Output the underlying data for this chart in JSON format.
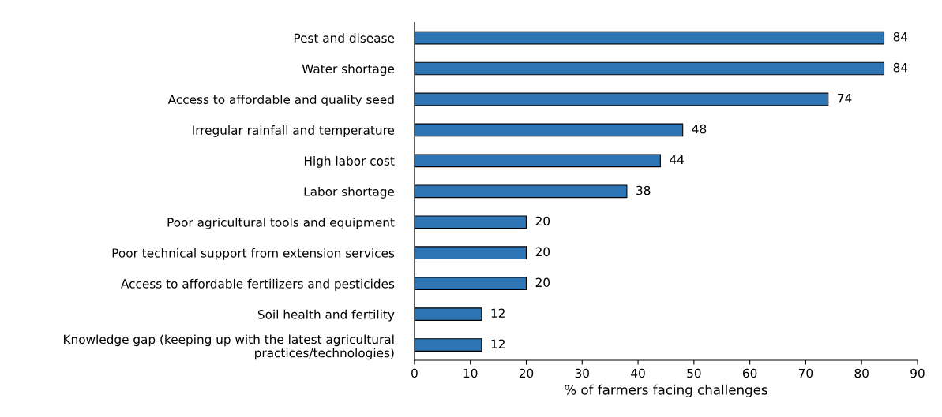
{
  "chart_data": {
    "type": "bar",
    "orientation": "horizontal",
    "xlabel": "% of farmers facing challenges",
    "categories": [
      "Pest and disease",
      "Water shortage",
      "Access to affordable and quality seed",
      "Irregular rainfall and temperature",
      "High labor cost",
      "Labor shortage",
      "Poor agricultural tools and equipment",
      "Poor technical support from extension services",
      "Access to affordable fertilizers and pesticides",
      "Soil health and fertility",
      "Knowledge gap (keeping up with the latest agricultural\npractices/technologies)"
    ],
    "values": [
      84,
      84,
      74,
      48,
      44,
      38,
      20,
      20,
      20,
      12,
      12
    ],
    "color": "#2e75b6",
    "xlim": [
      0,
      90
    ],
    "xticks": [
      0,
      10,
      20,
      30,
      40,
      50,
      60,
      70,
      80,
      90
    ],
    "data_labels": true,
    "grid": false,
    "legend": false
  }
}
